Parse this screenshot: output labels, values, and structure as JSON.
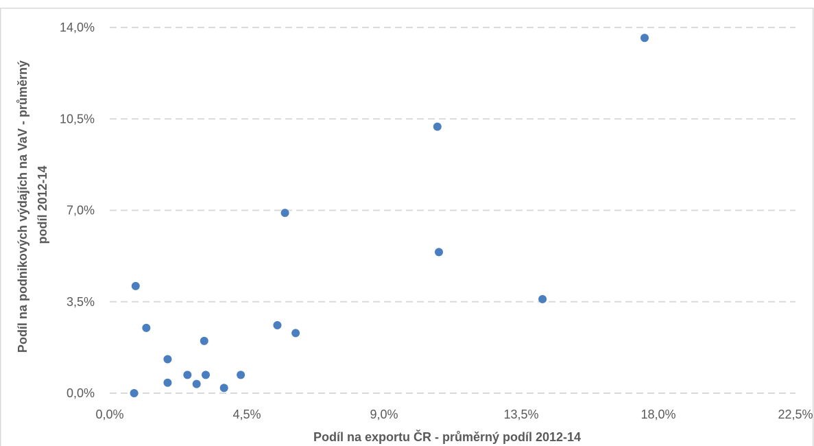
{
  "chart_data": {
    "type": "scatter",
    "title": "",
    "xlabel": "Podíl na exportu ČR - průměrný podíl 2012-14",
    "ylabel_lines": [
      "Podíl na podnikových výdajích na VaV - průměrný",
      "podíl 2012-14"
    ],
    "xlim": [
      0,
      22.5
    ],
    "ylim": [
      0,
      14
    ],
    "x_ticks": [
      "0,0%",
      "4,5%",
      "9,0%",
      "13,5%",
      "18,0%",
      "22,5%"
    ],
    "y_ticks": [
      "0,0%",
      "3,5%",
      "7,0%",
      "10,5%",
      "14,0%"
    ],
    "x_tick_values": [
      0,
      4.5,
      9,
      13.5,
      18,
      22.5
    ],
    "y_tick_values": [
      0,
      3.5,
      7,
      10.5,
      14
    ],
    "grid": {
      "horizontal": true,
      "style": "dashed"
    },
    "marker_color": "#4a7ebf",
    "points": [
      {
        "x": 0.8,
        "y": 0.0
      },
      {
        "x": 0.85,
        "y": 4.1
      },
      {
        "x": 1.2,
        "y": 2.5
      },
      {
        "x": 1.9,
        "y": 0.4
      },
      {
        "x": 1.9,
        "y": 1.3
      },
      {
        "x": 2.55,
        "y": 0.7
      },
      {
        "x": 2.85,
        "y": 0.35
      },
      {
        "x": 3.1,
        "y": 2.0
      },
      {
        "x": 3.15,
        "y": 0.7
      },
      {
        "x": 3.75,
        "y": 0.2
      },
      {
        "x": 4.3,
        "y": 0.7
      },
      {
        "x": 5.5,
        "y": 2.6
      },
      {
        "x": 5.75,
        "y": 6.9
      },
      {
        "x": 6.1,
        "y": 2.3
      },
      {
        "x": 10.75,
        "y": 10.2
      },
      {
        "x": 10.8,
        "y": 5.4
      },
      {
        "x": 14.2,
        "y": 3.6
      },
      {
        "x": 17.55,
        "y": 13.6
      }
    ]
  }
}
